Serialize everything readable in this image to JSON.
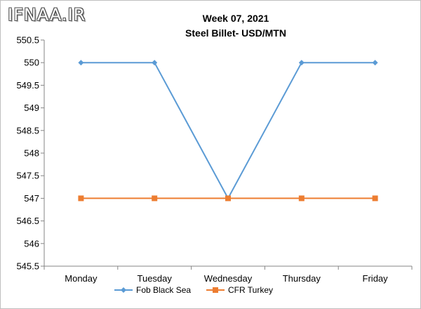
{
  "watermark": "IFNAA.IR",
  "chart_data": {
    "type": "line",
    "title": "Week 07, 2021",
    "subtitle": "Steel Billet- USD/MTN",
    "categories": [
      "Monday",
      "Tuesday",
      "Wednesday",
      "Thursday",
      "Friday"
    ],
    "series": [
      {
        "name": "Fob Black Sea",
        "values": [
          550,
          550,
          547,
          550,
          550
        ],
        "color": "#5b9bd5",
        "marker": "diamond"
      },
      {
        "name": "CFR Turkey",
        "values": [
          547,
          547,
          547,
          547,
          547
        ],
        "color": "#ed7d31",
        "marker": "square"
      }
    ],
    "ylim": [
      545.5,
      550.5
    ],
    "yticks": [
      "550.5",
      "550",
      "549.5",
      "549",
      "548.5",
      "548",
      "547.5",
      "547",
      "546.5",
      "546",
      "545.5"
    ],
    "ytick_values": [
      550.5,
      550,
      549.5,
      549,
      548.5,
      548,
      547.5,
      547,
      546.5,
      546,
      545.5
    ],
    "grid": false,
    "legend": "bottom"
  }
}
